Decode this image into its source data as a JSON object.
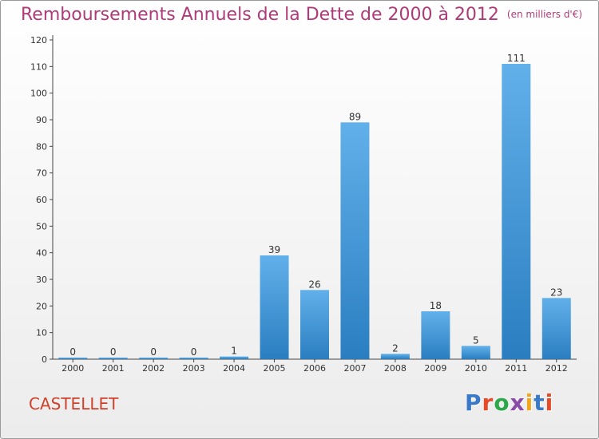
{
  "title": "Remboursements Annuels de la Dette de 2000 à 2012",
  "title_unit": "(en milliers d'€)",
  "place_name": "CASTELLET",
  "logo": {
    "text": "Proxiti",
    "colors": [
      "#3a78c8",
      "#e84a27",
      "#2aa84a",
      "#8a4aa8",
      "#f2a51c",
      "#3a78c8",
      "#e84a27"
    ]
  },
  "colors": {
    "bar_top": "#62b0ea",
    "bar_bottom": "#2a7ec0",
    "title": "#b03a78",
    "place": "#d0402a"
  },
  "chart_data": {
    "type": "bar",
    "categories": [
      "2000",
      "2001",
      "2002",
      "2003",
      "2004",
      "2005",
      "2006",
      "2007",
      "2008",
      "2009",
      "2010",
      "2011",
      "2012"
    ],
    "values": [
      0,
      0,
      0,
      0,
      1,
      39,
      26,
      89,
      2,
      18,
      5,
      111,
      23
    ],
    "ylim": [
      0,
      120
    ],
    "yticks": [
      0,
      10,
      20,
      30,
      40,
      50,
      60,
      70,
      80,
      90,
      100,
      110,
      120
    ],
    "grid": false
  }
}
